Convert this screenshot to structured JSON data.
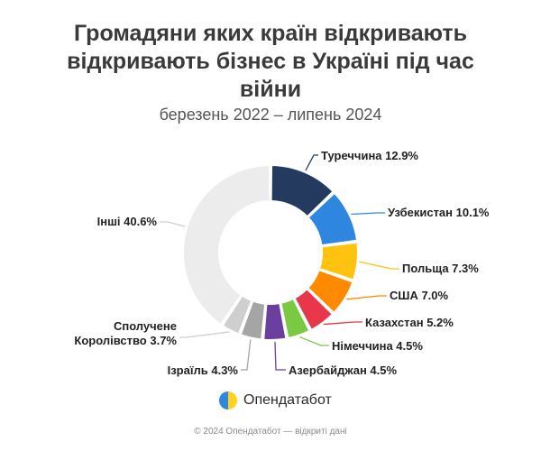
{
  "title": "Громадяни яких країн відкривають відкривають бізнес в Україні під час війни",
  "subtitle": "березень 2022 – липень 2024",
  "brand": {
    "name": "Опендатабот",
    "logo_icon": "opendatabot-logo-icon"
  },
  "footer": "© 2024 Опендатабот — відкриті дані",
  "chart_data": {
    "type": "pie",
    "variant": "donut",
    "title": "Громадяни яких країн відкривають відкривають бізнес в Україні під час війни",
    "subtitle": "березень 2022 – липень 2024",
    "unit": "%",
    "slices": [
      {
        "label": "Туреччина 12.9%",
        "name": "Туреччина",
        "value": 12.9,
        "color": "#243a5e"
      },
      {
        "label": "Узбекистан 10.1%",
        "name": "Узбекистан",
        "value": 10.1,
        "color": "#2f86de"
      },
      {
        "label": "Польща 7.3%",
        "name": "Польща",
        "value": 7.3,
        "color": "#ffc20e"
      },
      {
        "label": "США 7.0%",
        "name": "США",
        "value": 7.0,
        "color": "#ff8a00"
      },
      {
        "label": "Казахстан 5.2%",
        "name": "Казахстан",
        "value": 5.2,
        "color": "#e8364a"
      },
      {
        "label": "Німеччина 4.5%",
        "name": "Німеччина",
        "value": 4.5,
        "color": "#7ac943"
      },
      {
        "label": "Азербайджан 4.5%",
        "name": "Азербайджан",
        "value": 4.5,
        "color": "#6b3fa0"
      },
      {
        "label": "Ізраїль 4.3%",
        "name": "Ізраїль",
        "value": 4.3,
        "color": "#a5a5a5"
      },
      {
        "label": [
          "Сполучене",
          "Королівство 3.7%"
        ],
        "name": "Сполучене Королівство",
        "value": 3.7,
        "color": "#cfcfcf"
      },
      {
        "label": "Інші 40.6%",
        "name": "Інші",
        "value": 40.6,
        "color": "#ececec"
      }
    ]
  }
}
